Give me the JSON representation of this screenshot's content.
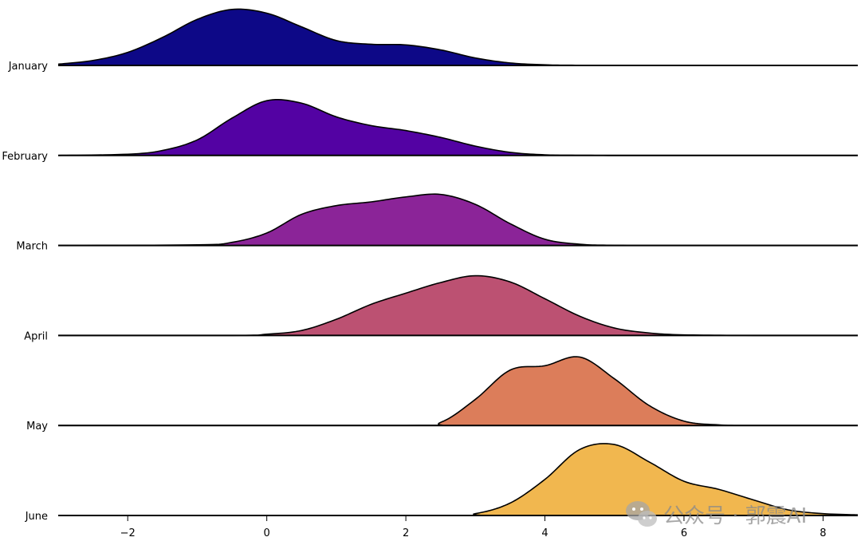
{
  "chart_data": {
    "type": "ridgeline",
    "title": "",
    "xlabel": "",
    "ylabel": "",
    "xlim": [
      -3.0,
      8.5
    ],
    "xticks": [
      -2,
      0,
      2,
      4,
      6,
      8
    ],
    "xtick_labels": [
      "−2",
      "0",
      "2",
      "4",
      "6",
      "8"
    ],
    "grid": false,
    "series": [
      {
        "name": "January",
        "color": "#0d0887",
        "density": [
          [
            -3.0,
            0.02
          ],
          [
            -2.5,
            0.08
          ],
          [
            -2.0,
            0.21
          ],
          [
            -1.5,
            0.45
          ],
          [
            -1.0,
            0.74
          ],
          [
            -0.5,
            0.9
          ],
          [
            0.0,
            0.84
          ],
          [
            0.5,
            0.62
          ],
          [
            1.0,
            0.4
          ],
          [
            1.5,
            0.34
          ],
          [
            2.0,
            0.33
          ],
          [
            2.5,
            0.25
          ],
          [
            3.0,
            0.12
          ],
          [
            3.5,
            0.04
          ],
          [
            4.0,
            0.01
          ],
          [
            4.5,
            0.003
          ],
          [
            5.5,
            0.0
          ],
          [
            8.5,
            0.0
          ]
        ]
      },
      {
        "name": "February",
        "color": "#5302a3",
        "density": [
          [
            -3.0,
            0.0
          ],
          [
            -2.0,
            0.02
          ],
          [
            -1.5,
            0.08
          ],
          [
            -1.0,
            0.25
          ],
          [
            -0.5,
            0.6
          ],
          [
            0.0,
            0.88
          ],
          [
            0.5,
            0.84
          ],
          [
            1.0,
            0.62
          ],
          [
            1.5,
            0.48
          ],
          [
            2.0,
            0.4
          ],
          [
            2.5,
            0.29
          ],
          [
            3.0,
            0.15
          ],
          [
            3.5,
            0.05
          ],
          [
            4.0,
            0.01
          ],
          [
            4.5,
            0.002
          ],
          [
            5.5,
            0.0
          ],
          [
            8.5,
            0.0
          ]
        ]
      },
      {
        "name": "March",
        "color": "#8b2498",
        "density": [
          [
            -3.0,
            0.0
          ],
          [
            -1.0,
            0.01
          ],
          [
            -0.5,
            0.05
          ],
          [
            0.0,
            0.2
          ],
          [
            0.5,
            0.5
          ],
          [
            1.0,
            0.64
          ],
          [
            1.5,
            0.7
          ],
          [
            2.0,
            0.78
          ],
          [
            2.5,
            0.82
          ],
          [
            3.0,
            0.66
          ],
          [
            3.5,
            0.35
          ],
          [
            4.0,
            0.1
          ],
          [
            4.5,
            0.02
          ],
          [
            5.0,
            0.003
          ],
          [
            6.0,
            0.0
          ],
          [
            8.5,
            0.0
          ]
        ]
      },
      {
        "name": "April",
        "color": "#bc5172",
        "density": [
          [
            -3.0,
            0.0
          ],
          [
            -0.5,
            0.0
          ],
          [
            0.0,
            0.02
          ],
          [
            0.5,
            0.08
          ],
          [
            1.0,
            0.26
          ],
          [
            1.5,
            0.5
          ],
          [
            2.0,
            0.68
          ],
          [
            2.5,
            0.85
          ],
          [
            3.0,
            0.96
          ],
          [
            3.5,
            0.86
          ],
          [
            4.0,
            0.59
          ],
          [
            4.5,
            0.31
          ],
          [
            5.0,
            0.12
          ],
          [
            5.5,
            0.04
          ],
          [
            6.0,
            0.01
          ],
          [
            7.0,
            0.0
          ],
          [
            8.5,
            0.0
          ]
        ]
      },
      {
        "name": "May",
        "color": "#dc7d5a",
        "density": [
          [
            -3.0,
            0.0
          ],
          [
            2.0,
            0.0
          ],
          [
            2.5,
            0.05
          ],
          [
            3.0,
            0.42
          ],
          [
            3.5,
            0.89
          ],
          [
            4.0,
            0.96
          ],
          [
            4.5,
            1.1
          ],
          [
            5.0,
            0.75
          ],
          [
            5.5,
            0.32
          ],
          [
            6.0,
            0.07
          ],
          [
            6.5,
            0.01
          ],
          [
            7.0,
            0.0
          ],
          [
            8.5,
            0.0
          ]
        ]
      },
      {
        "name": "June",
        "color": "#f1b74f",
        "density": [
          [
            -3.0,
            0.0
          ],
          [
            2.5,
            0.0
          ],
          [
            3.0,
            0.03
          ],
          [
            3.5,
            0.2
          ],
          [
            4.0,
            0.58
          ],
          [
            4.5,
            1.06
          ],
          [
            5.0,
            1.14
          ],
          [
            5.5,
            0.86
          ],
          [
            6.0,
            0.55
          ],
          [
            6.5,
            0.42
          ],
          [
            7.0,
            0.25
          ],
          [
            7.5,
            0.09
          ],
          [
            8.0,
            0.03
          ],
          [
            8.5,
            0.01
          ]
        ]
      }
    ]
  },
  "watermark": {
    "text": "公众号 · 郭震AI",
    "icon": "wechat-icon"
  }
}
